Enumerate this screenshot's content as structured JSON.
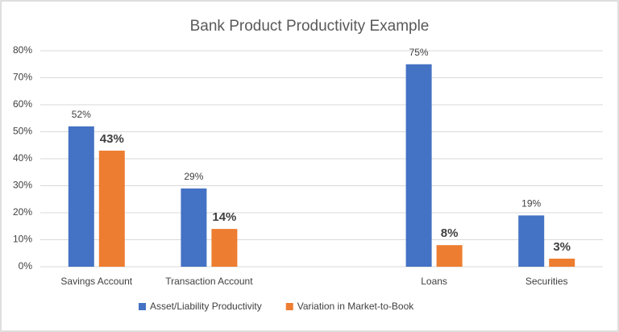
{
  "chart_data": {
    "type": "bar",
    "title": "Bank Product Productivity Example",
    "categories": [
      "Savings Account",
      "Transaction Account",
      null,
      "Loans",
      "Securities"
    ],
    "series": [
      {
        "name": "Asset/Liability Productivity",
        "color": "#4472c4",
        "values": [
          52,
          29,
          null,
          75,
          19
        ],
        "value_labels": [
          "52%",
          "29%",
          null,
          "75%",
          "19%"
        ]
      },
      {
        "name": "Variation in Market-to-Book",
        "color": "#ed7d31",
        "values": [
          43,
          14,
          null,
          8,
          3
        ],
        "value_labels": [
          "43%",
          "14%",
          null,
          "8%",
          "3%"
        ]
      }
    ],
    "ylim": [
      0,
      80
    ],
    "yticks": [
      {
        "value": 0,
        "label": "0%"
      },
      {
        "value": 10,
        "label": "10%"
      },
      {
        "value": 20,
        "label": "20%"
      },
      {
        "value": 30,
        "label": "30%"
      },
      {
        "value": 40,
        "label": "40%"
      },
      {
        "value": 50,
        "label": "50%"
      },
      {
        "value": 60,
        "label": "60%"
      },
      {
        "value": 70,
        "label": "70%"
      },
      {
        "value": 80,
        "label": "80%"
      }
    ],
    "grid": true,
    "legend": "bottom"
  }
}
